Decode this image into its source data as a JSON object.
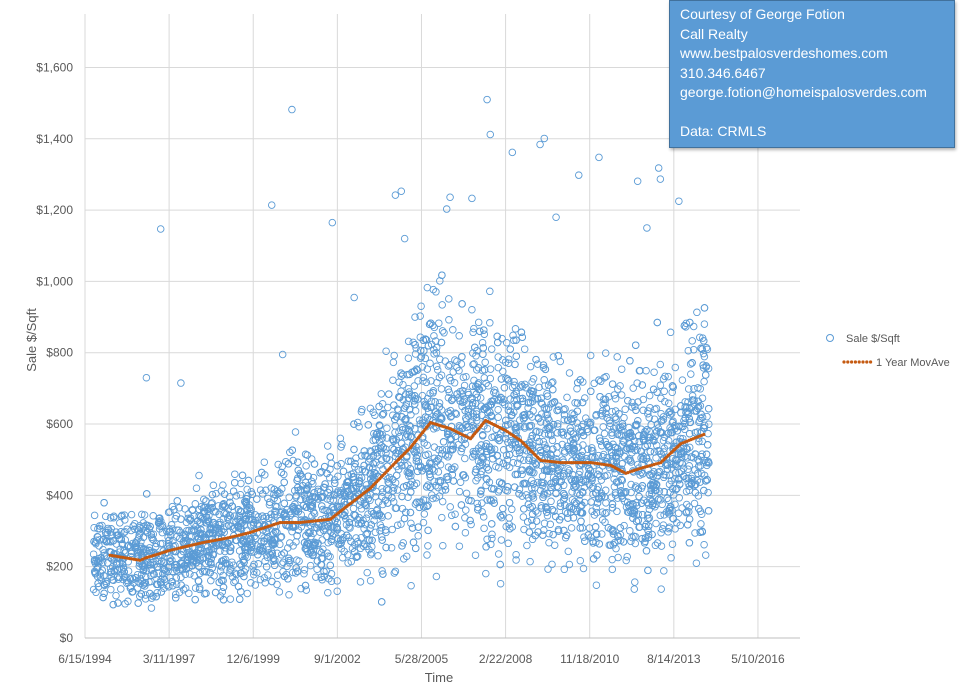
{
  "credit_box": {
    "lines": [
      "Courtesy of George Fotion",
      "Call Realty",
      "www.bestpalosverdeshomes.com",
      "310.346.6467",
      "george.fotion@homeispalosverdes.com",
      "",
      "Data: CRMLS"
    ]
  },
  "colors": {
    "scatter": "#5b9bd5",
    "movave": "#c55a11",
    "grid": "#d9d9d9",
    "credit_bg": "#5b9bd5"
  },
  "chart_data": {
    "type": "scatter",
    "title": "",
    "xlabel": "Time",
    "ylabel": "Sale $/Sqft",
    "x_unit": "excel-serial-date",
    "xlim": [
      34500,
      43000
    ],
    "ylim": [
      0,
      1750
    ],
    "x_ticks": [
      34500,
      35500,
      36500,
      37500,
      38500,
      39500,
      40500,
      41500,
      42500
    ],
    "x_tick_labels": [
      "6/15/1994",
      "3/11/1997",
      "12/6/1999",
      "9/1/2002",
      "5/28/2005",
      "2/22/2008",
      "11/18/2010",
      "8/14/2013",
      "5/10/2016"
    ],
    "y_ticks": [
      0,
      200,
      400,
      600,
      800,
      1000,
      1200,
      1400,
      1600
    ],
    "y_tick_labels": [
      "$0",
      "$200",
      "$400",
      "$600",
      "$800",
      "$1,000",
      "$1,200",
      "$1,400",
      "$1,600"
    ],
    "grid": true,
    "legend_position": "right",
    "series": [
      {
        "name": "Sale $/Sqft",
        "kind": "scatter",
        "data_range_x": [
          34580,
          41920
        ],
        "cloud": {
          "count": 4200,
          "relative_spread": 0.27,
          "follows": "1 Year MovAve"
        },
        "notable_points": [
          [
            36960,
            1482
          ],
          [
            39280,
            1510
          ],
          [
            39318,
            1412
          ],
          [
            39580,
            1362
          ],
          [
            39960,
            1401
          ],
          [
            39910,
            1384
          ],
          [
            40370,
            1298
          ],
          [
            40610,
            1348
          ],
          [
            41070,
            1281
          ],
          [
            35400,
            1147
          ],
          [
            36720,
            1214
          ],
          [
            38840,
            1236
          ],
          [
            38800,
            1203
          ],
          [
            38260,
            1253
          ],
          [
            38190,
            1242
          ],
          [
            41320,
            1318
          ],
          [
            41340,
            1287
          ],
          [
            35290,
            84
          ],
          [
            41030,
            137
          ],
          [
            41350,
            137
          ],
          [
            38190,
            187
          ],
          [
            35230,
            730
          ],
          [
            35640,
            715
          ],
          [
            36850,
            795
          ],
          [
            37700,
            955
          ],
          [
            38300,
            1120
          ],
          [
            39100,
            1233
          ],
          [
            40100,
            1180
          ],
          [
            41180,
            1150
          ],
          [
            41560,
            1225
          ],
          [
            37440,
            1165
          ]
        ]
      },
      {
        "name": "1 Year MovAve",
        "kind": "line-dotted",
        "points": [
          [
            34798,
            232
          ],
          [
            35155,
            218
          ],
          [
            35214,
            224
          ],
          [
            35512,
            246
          ],
          [
            35869,
            266
          ],
          [
            36226,
            282
          ],
          [
            36464,
            296
          ],
          [
            36821,
            324
          ],
          [
            37060,
            324
          ],
          [
            37417,
            333
          ],
          [
            37595,
            366
          ],
          [
            37893,
            420
          ],
          [
            38190,
            492
          ],
          [
            38369,
            534
          ],
          [
            38607,
            604
          ],
          [
            38845,
            587
          ],
          [
            39083,
            559
          ],
          [
            39262,
            610
          ],
          [
            39500,
            582
          ],
          [
            39679,
            554
          ],
          [
            39917,
            498
          ],
          [
            40155,
            492
          ],
          [
            40512,
            492
          ],
          [
            40750,
            484
          ],
          [
            40929,
            462
          ],
          [
            41107,
            476
          ],
          [
            41345,
            492
          ],
          [
            41583,
            545
          ],
          [
            41881,
            573
          ]
        ]
      }
    ]
  }
}
